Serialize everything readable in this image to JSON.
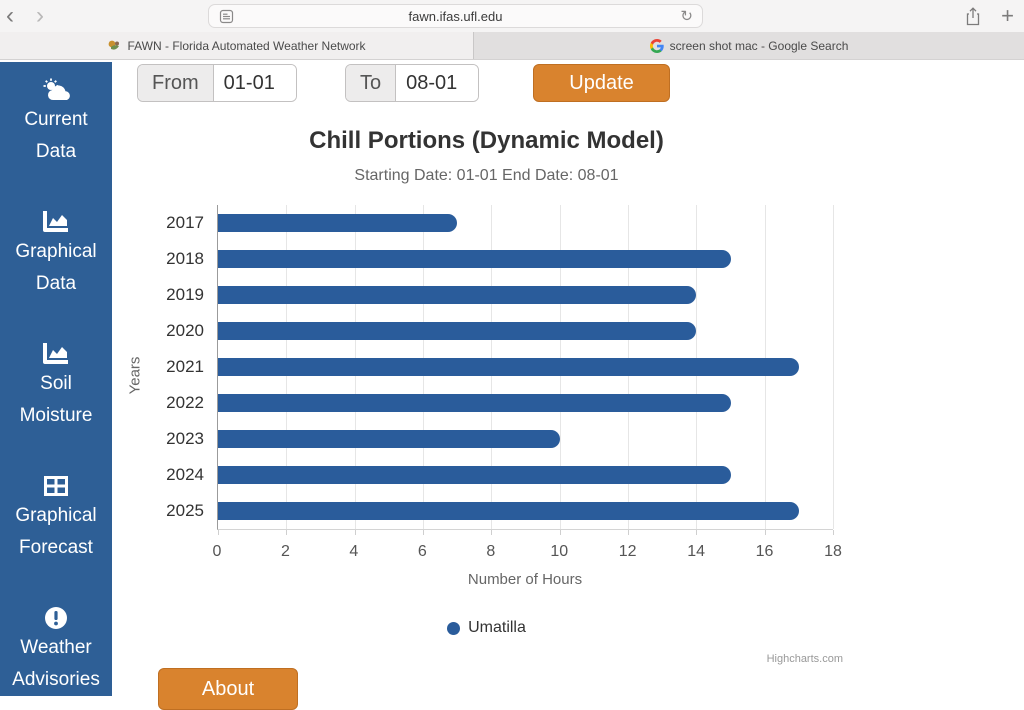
{
  "browser": {
    "url": "fawn.ifas.ufl.edu",
    "back": "‹",
    "forward": "›",
    "reload": "↻",
    "new_tab": "+",
    "tabs": [
      {
        "title": "FAWN - Florida Automated Weather Network",
        "active": true
      },
      {
        "title": "screen shot mac - Google Search",
        "active": false
      }
    ]
  },
  "sidebar": {
    "bg_color": "#2e5f96",
    "items": [
      {
        "icon": "cloud-sun-icon",
        "line1": "Current",
        "line2": "Data"
      },
      {
        "icon": "chart-area-icon",
        "line1": "Graphical",
        "line2": "Data"
      },
      {
        "icon": "chart-area-icon",
        "line1": "Soil",
        "line2": "Moisture"
      },
      {
        "icon": "table-icon",
        "line1": "Graphical",
        "line2": "Forecast"
      },
      {
        "icon": "exclamation-icon",
        "line1": "Weather",
        "line2": "Advisories"
      }
    ]
  },
  "form": {
    "from_label": "From",
    "from_value": "01-01",
    "to_label": "To",
    "to_value": "08-01",
    "update_label": "Update",
    "button_color": "#d9832e"
  },
  "chart_data": {
    "type": "bar",
    "orientation": "horizontal",
    "title": "Chill Portions (Dynamic Model)",
    "subtitle": "Starting Date: 01-01 End Date: 08-01",
    "categories": [
      "2017",
      "2018",
      "2019",
      "2020",
      "2021",
      "2022",
      "2023",
      "2024",
      "2025"
    ],
    "values": [
      7,
      15,
      14,
      14,
      17,
      15,
      10,
      15,
      17
    ],
    "series_name": "Umatilla",
    "xlabel": "Number of Hours",
    "ylabel": "Years",
    "xlim": [
      0,
      18
    ],
    "xticks": [
      0,
      2,
      4,
      6,
      8,
      10,
      12,
      14,
      16,
      18
    ],
    "bar_color": "#2a5c9b",
    "grid": true,
    "legend_position": "bottom",
    "credits": "Highcharts.com"
  },
  "footer": {
    "about_label": "About"
  }
}
